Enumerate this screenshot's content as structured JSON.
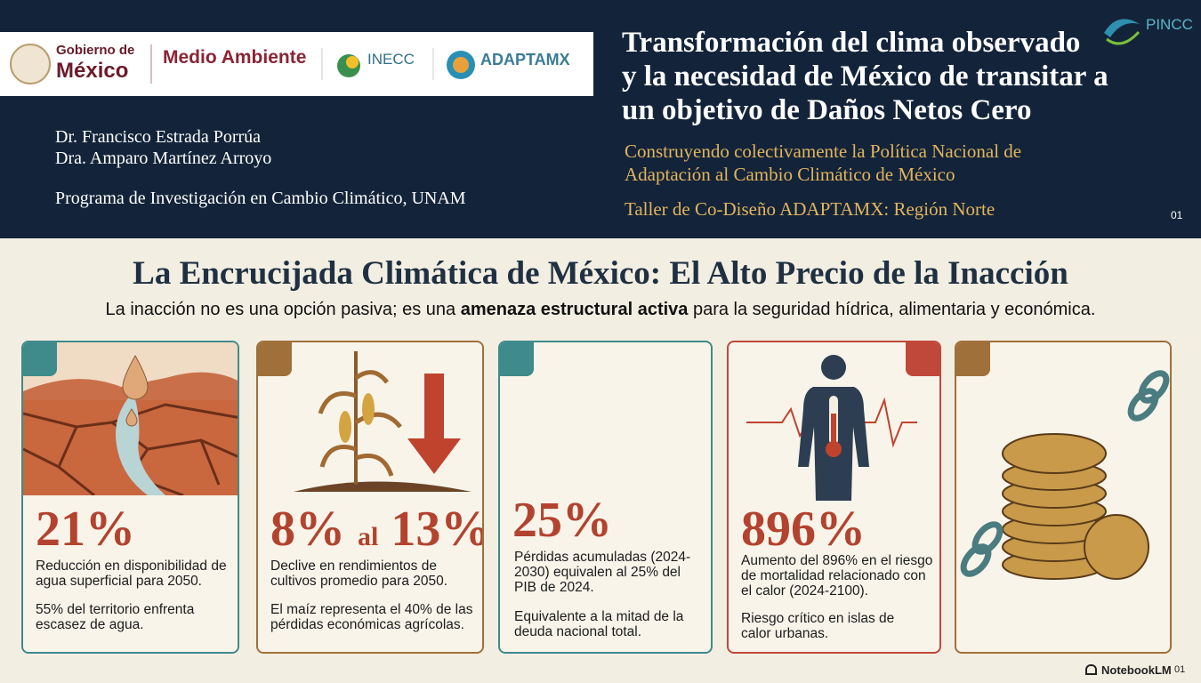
{
  "header": {
    "logos": {
      "gobierno_line1": "Gobierno de",
      "gobierno_line2": "México",
      "medio_ambiente": "Medio Ambiente",
      "inecc": "INECC",
      "adaptamx": "ADAPTAMX",
      "pincc": "PINCC"
    },
    "title_lines": [
      "Transformación del clima observado",
      "y la necesidad de México de transitar a",
      "un objetivo de Daños Netos Cero"
    ],
    "subtitle_lines": [
      "Construyendo colectivamente la Política Nacional de",
      "Adaptación al Cambio Climático de México"
    ],
    "workshop": "Taller de Co-Diseño ADAPTAMX: Región Norte",
    "authors": [
      "Dr. Francisco Estrada Porrúa",
      "Dra. Amparo Martínez Arroyo"
    ],
    "program": "Programa de Investigación en Cambio Climático, UNAM",
    "page_number": "01"
  },
  "main": {
    "title": "La Encrucijada Climática de México: El Alto Precio de la Inacción",
    "subtitle_parts": [
      "La inacción no es una opción pasiva; es una ",
      "amenaza estructural activa",
      " para la seguridad hídrica, alimentaria y económica."
    ],
    "cards": [
      {
        "stat": "21%",
        "text1": "Reducción en disponibilidad de agua superficial para 2050.",
        "text2": "55% del territorio enfrenta escasez de agua."
      },
      {
        "stat": "8%",
        "stat_connector": "al",
        "stat_end": "13%",
        "text1": "Declive en rendimientos de cultivos promedio para 2050.",
        "text2": "El maíz representa el 40% de las pérdidas económicas agrícolas."
      },
      {
        "stat": "25%",
        "text1": "Pérdidas acumuladas (2024-2030) equivalen al 25% del PIB de 2024.",
        "text2": "Equivalente a la mitad de la deuda nacional total."
      },
      {
        "stat": "896%",
        "text1": "Aumento del 896% en el riesgo de mortalidad relacionado con el calor (2024-2100).",
        "text2": "Riesgo crítico en islas de calor urbanas."
      }
    ]
  },
  "footer": {
    "brand": "NotebookLM",
    "page_number": "01"
  }
}
